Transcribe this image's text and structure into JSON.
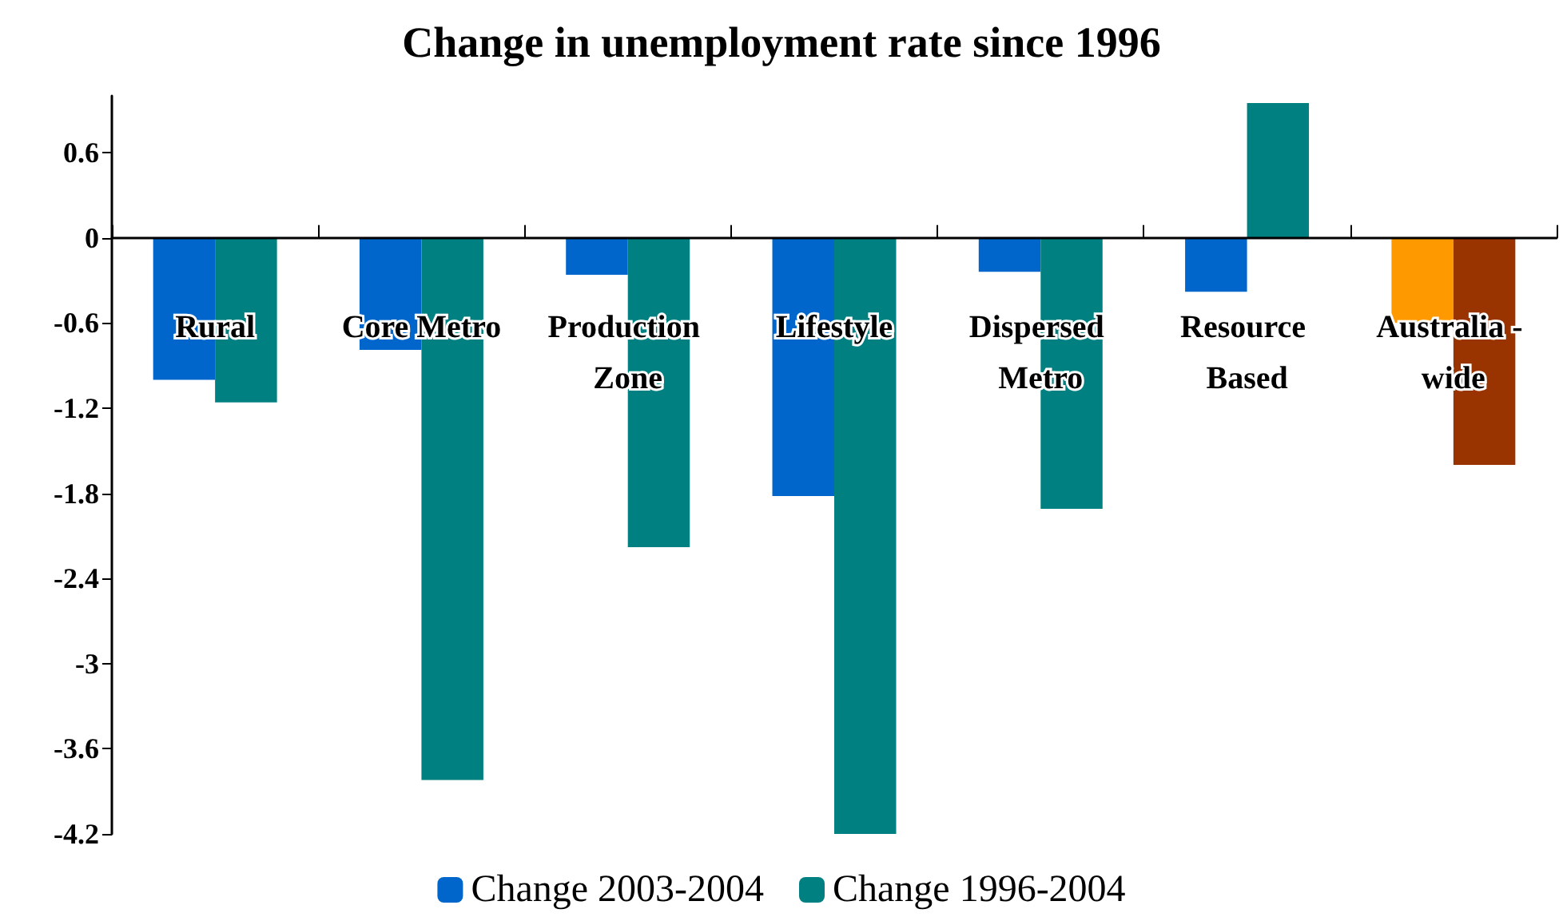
{
  "chart_data": {
    "type": "bar",
    "title": "Change in unemployment rate since 1996",
    "categories": [
      "Rural",
      "Core Metro",
      "Production Zone",
      "Lifestyle",
      "Dispersed Metro",
      "Resource Based",
      "Australia - wide"
    ],
    "series": [
      {
        "name": "Change 2003-2004",
        "color": "#0066cc",
        "colors": [
          "#0066cc",
          "#0066cc",
          "#0066cc",
          "#0066cc",
          "#0066cc",
          "#0066cc",
          "#ff9900"
        ],
        "values": [
          -1.0,
          -0.79,
          -0.26,
          -1.82,
          -0.24,
          -0.38,
          -0.6
        ]
      },
      {
        "name": "Change 1996-2004",
        "color": "#008080",
        "colors": [
          "#008080",
          "#008080",
          "#008080",
          "#008080",
          "#008080",
          "#008080",
          "#993300"
        ],
        "values": [
          -1.16,
          -3.82,
          -2.18,
          -4.2,
          -1.91,
          0.95,
          -1.6
        ]
      }
    ],
    "ylim": [
      -4.2,
      1.0
    ],
    "yticks": [
      -4.2,
      -3.6,
      -3,
      -2.4,
      -1.8,
      -1.2,
      -0.6,
      0,
      0.6
    ],
    "grid": false,
    "legend": "bottom"
  }
}
